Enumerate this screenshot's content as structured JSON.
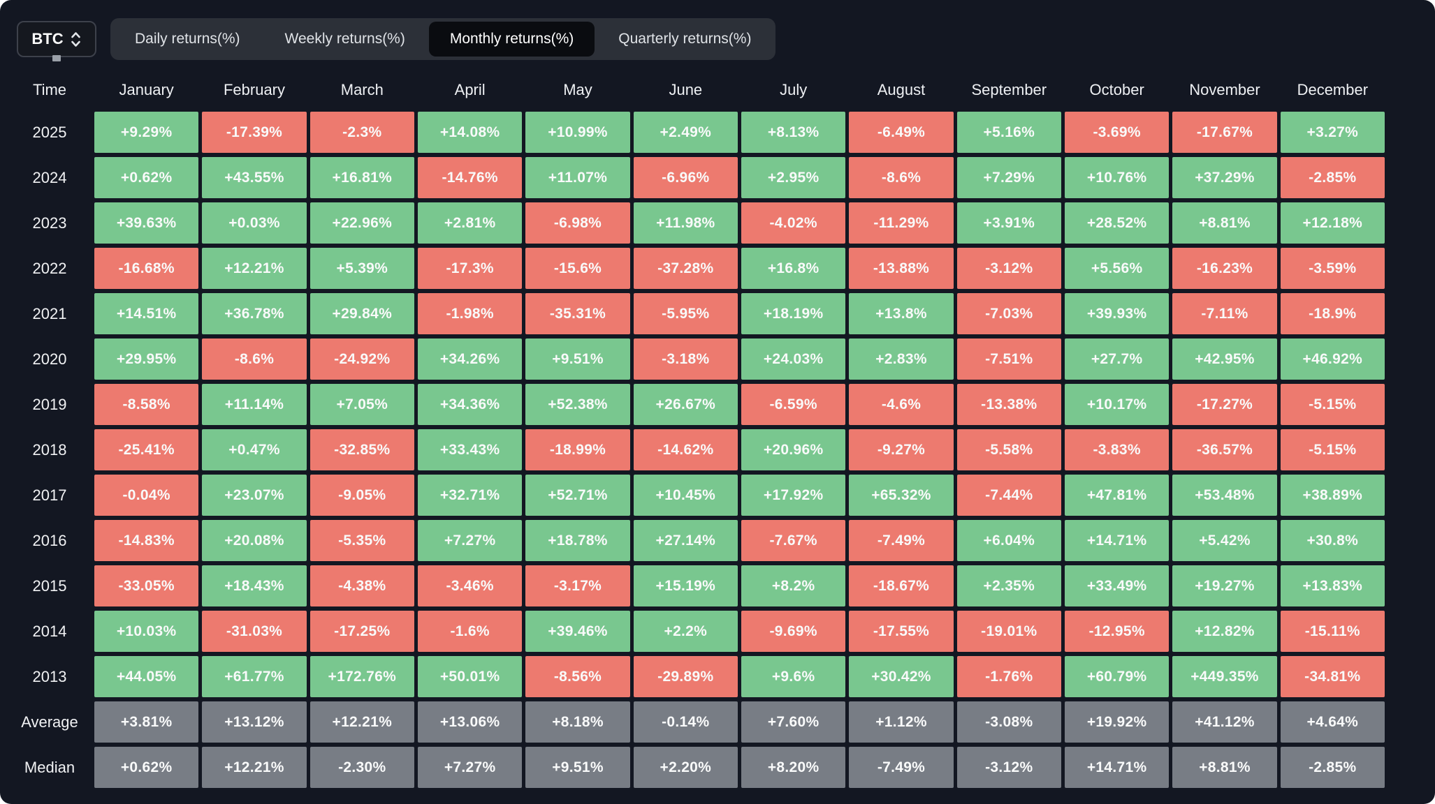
{
  "header": {
    "symbol": "BTC",
    "tabs": [
      {
        "label": "Daily returns(%)",
        "active": false
      },
      {
        "label": "Weekly returns(%)",
        "active": false
      },
      {
        "label": "Monthly returns(%)",
        "active": true
      },
      {
        "label": "Quarterly returns(%)",
        "active": false
      }
    ]
  },
  "colors": {
    "positive": "#79c78f",
    "negative": "#ed7a6f",
    "summary": "#787d85"
  },
  "table": {
    "time_label": "Time",
    "months": [
      "January",
      "February",
      "March",
      "April",
      "May",
      "June",
      "July",
      "August",
      "September",
      "October",
      "November",
      "December"
    ],
    "rows": [
      {
        "label": "2025",
        "type": "year",
        "values": [
          "+9.29%",
          "-17.39%",
          "-2.3%",
          "+14.08%",
          "+10.99%",
          "+2.49%",
          "+8.13%",
          "-6.49%",
          "+5.16%",
          "-3.69%",
          "-17.67%",
          "+3.27%"
        ]
      },
      {
        "label": "2024",
        "type": "year",
        "values": [
          "+0.62%",
          "+43.55%",
          "+16.81%",
          "-14.76%",
          "+11.07%",
          "-6.96%",
          "+2.95%",
          "-8.6%",
          "+7.29%",
          "+10.76%",
          "+37.29%",
          "-2.85%"
        ]
      },
      {
        "label": "2023",
        "type": "year",
        "values": [
          "+39.63%",
          "+0.03%",
          "+22.96%",
          "+2.81%",
          "-6.98%",
          "+11.98%",
          "-4.02%",
          "-11.29%",
          "+3.91%",
          "+28.52%",
          "+8.81%",
          "+12.18%"
        ]
      },
      {
        "label": "2022",
        "type": "year",
        "values": [
          "-16.68%",
          "+12.21%",
          "+5.39%",
          "-17.3%",
          "-15.6%",
          "-37.28%",
          "+16.8%",
          "-13.88%",
          "-3.12%",
          "+5.56%",
          "-16.23%",
          "-3.59%"
        ]
      },
      {
        "label": "2021",
        "type": "year",
        "values": [
          "+14.51%",
          "+36.78%",
          "+29.84%",
          "-1.98%",
          "-35.31%",
          "-5.95%",
          "+18.19%",
          "+13.8%",
          "-7.03%",
          "+39.93%",
          "-7.11%",
          "-18.9%"
        ]
      },
      {
        "label": "2020",
        "type": "year",
        "values": [
          "+29.95%",
          "-8.6%",
          "-24.92%",
          "+34.26%",
          "+9.51%",
          "-3.18%",
          "+24.03%",
          "+2.83%",
          "-7.51%",
          "+27.7%",
          "+42.95%",
          "+46.92%"
        ]
      },
      {
        "label": "2019",
        "type": "year",
        "values": [
          "-8.58%",
          "+11.14%",
          "+7.05%",
          "+34.36%",
          "+52.38%",
          "+26.67%",
          "-6.59%",
          "-4.6%",
          "-13.38%",
          "+10.17%",
          "-17.27%",
          "-5.15%"
        ]
      },
      {
        "label": "2018",
        "type": "year",
        "values": [
          "-25.41%",
          "+0.47%",
          "-32.85%",
          "+33.43%",
          "-18.99%",
          "-14.62%",
          "+20.96%",
          "-9.27%",
          "-5.58%",
          "-3.83%",
          "-36.57%",
          "-5.15%"
        ]
      },
      {
        "label": "2017",
        "type": "year",
        "values": [
          "-0.04%",
          "+23.07%",
          "-9.05%",
          "+32.71%",
          "+52.71%",
          "+10.45%",
          "+17.92%",
          "+65.32%",
          "-7.44%",
          "+47.81%",
          "+53.48%",
          "+38.89%"
        ]
      },
      {
        "label": "2016",
        "type": "year",
        "values": [
          "-14.83%",
          "+20.08%",
          "-5.35%",
          "+7.27%",
          "+18.78%",
          "+27.14%",
          "-7.67%",
          "-7.49%",
          "+6.04%",
          "+14.71%",
          "+5.42%",
          "+30.8%"
        ]
      },
      {
        "label": "2015",
        "type": "year",
        "values": [
          "-33.05%",
          "+18.43%",
          "-4.38%",
          "-3.46%",
          "-3.17%",
          "+15.19%",
          "+8.2%",
          "-18.67%",
          "+2.35%",
          "+33.49%",
          "+19.27%",
          "+13.83%"
        ]
      },
      {
        "label": "2014",
        "type": "year",
        "values": [
          "+10.03%",
          "-31.03%",
          "-17.25%",
          "-1.6%",
          "+39.46%",
          "+2.2%",
          "-9.69%",
          "-17.55%",
          "-19.01%",
          "-12.95%",
          "+12.82%",
          "-15.11%"
        ]
      },
      {
        "label": "2013",
        "type": "year",
        "values": [
          "+44.05%",
          "+61.77%",
          "+172.76%",
          "+50.01%",
          "-8.56%",
          "-29.89%",
          "+9.6%",
          "+30.42%",
          "-1.76%",
          "+60.79%",
          "+449.35%",
          "-34.81%"
        ]
      },
      {
        "label": "Average",
        "type": "summary",
        "values": [
          "+3.81%",
          "+13.12%",
          "+12.21%",
          "+13.06%",
          "+8.18%",
          "-0.14%",
          "+7.60%",
          "+1.12%",
          "-3.08%",
          "+19.92%",
          "+41.12%",
          "+4.64%"
        ]
      },
      {
        "label": "Median",
        "type": "summary",
        "values": [
          "+0.62%",
          "+12.21%",
          "-2.30%",
          "+7.27%",
          "+9.51%",
          "+2.20%",
          "+8.20%",
          "-7.49%",
          "-3.12%",
          "+14.71%",
          "+8.81%",
          "-2.85%"
        ]
      }
    ]
  },
  "chart_data": {
    "type": "heatmap",
    "title": "BTC Monthly returns(%)",
    "columns": [
      "January",
      "February",
      "March",
      "April",
      "May",
      "June",
      "July",
      "August",
      "September",
      "October",
      "November",
      "December"
    ],
    "rows": [
      "2025",
      "2024",
      "2023",
      "2022",
      "2021",
      "2020",
      "2019",
      "2018",
      "2017",
      "2016",
      "2015",
      "2014",
      "2013",
      "Average",
      "Median"
    ],
    "values_pct": [
      [
        9.29,
        -17.39,
        -2.3,
        14.08,
        10.99,
        2.49,
        8.13,
        -6.49,
        5.16,
        -3.69,
        -17.67,
        3.27
      ],
      [
        0.62,
        43.55,
        16.81,
        -14.76,
        11.07,
        -6.96,
        2.95,
        -8.6,
        7.29,
        10.76,
        37.29,
        -2.85
      ],
      [
        39.63,
        0.03,
        22.96,
        2.81,
        -6.98,
        11.98,
        -4.02,
        -11.29,
        3.91,
        28.52,
        8.81,
        12.18
      ],
      [
        -16.68,
        12.21,
        5.39,
        -17.3,
        -15.6,
        -37.28,
        16.8,
        -13.88,
        -3.12,
        5.56,
        -16.23,
        -3.59
      ],
      [
        14.51,
        36.78,
        29.84,
        -1.98,
        -35.31,
        -5.95,
        18.19,
        13.8,
        -7.03,
        39.93,
        -7.11,
        -18.9
      ],
      [
        29.95,
        -8.6,
        -24.92,
        34.26,
        9.51,
        -3.18,
        24.03,
        2.83,
        -7.51,
        27.7,
        42.95,
        46.92
      ],
      [
        -8.58,
        11.14,
        7.05,
        34.36,
        52.38,
        26.67,
        -6.59,
        -4.6,
        -13.38,
        10.17,
        -17.27,
        -5.15
      ],
      [
        -25.41,
        0.47,
        -32.85,
        33.43,
        -18.99,
        -14.62,
        20.96,
        -9.27,
        -5.58,
        -3.83,
        -36.57,
        -5.15
      ],
      [
        -0.04,
        23.07,
        -9.05,
        32.71,
        52.71,
        10.45,
        17.92,
        65.32,
        -7.44,
        47.81,
        53.48,
        38.89
      ],
      [
        -14.83,
        20.08,
        -5.35,
        7.27,
        18.78,
        27.14,
        -7.67,
        -7.49,
        6.04,
        14.71,
        5.42,
        30.8
      ],
      [
        -33.05,
        18.43,
        -4.38,
        -3.46,
        -3.17,
        15.19,
        8.2,
        -18.67,
        2.35,
        33.49,
        19.27,
        13.83
      ],
      [
        10.03,
        -31.03,
        -17.25,
        -1.6,
        39.46,
        2.2,
        -9.69,
        -17.55,
        -19.01,
        -12.95,
        12.82,
        -15.11
      ],
      [
        44.05,
        61.77,
        172.76,
        50.01,
        -8.56,
        -29.89,
        9.6,
        30.42,
        -1.76,
        60.79,
        449.35,
        -34.81
      ],
      [
        3.81,
        13.12,
        12.21,
        13.06,
        8.18,
        -0.14,
        7.6,
        1.12,
        -3.08,
        19.92,
        41.12,
        4.64
      ],
      [
        0.62,
        12.21,
        -2.3,
        7.27,
        9.51,
        2.2,
        8.2,
        -7.49,
        -3.12,
        14.71,
        8.81,
        -2.85
      ]
    ],
    "color_rule": "green if value >= 0, red if value < 0, gray for Average/Median rows",
    "legend_position": "none",
    "grid": "off"
  }
}
